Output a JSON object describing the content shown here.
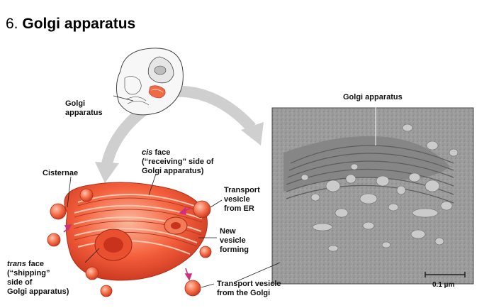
{
  "slide": {
    "number": "6.",
    "title": "Golgi apparatus"
  },
  "labels": {
    "cell_golgi": [
      "Golgi",
      "apparatus"
    ],
    "em_golgi": "Golgi apparatus",
    "cis_face": {
      "italic": "cis",
      "line1_rest": " face",
      "line2": "(“receiving” side of",
      "line3": "Golgi apparatus)"
    },
    "cisternae": "Cisternae",
    "transport_from_er": [
      "Transport",
      "vesicle",
      "from ER"
    ],
    "new_vesicle": [
      "New",
      "vesicle",
      "forming"
    ],
    "trans_face": {
      "italic": "trans",
      "line1_rest": " face",
      "line2": "(“shipping”",
      "line3": "side of",
      "line4": "Golgi apparatus)"
    },
    "transport_from_golgi": [
      "Transport vesicle",
      "from the Golgi"
    ],
    "scale_bar": "0.1 µm"
  },
  "colors": {
    "golgi_fill": "#f4603c",
    "golgi_light": "#f9a184",
    "golgi_dark": "#c7331c",
    "arrow_gray": "#cfcfcf",
    "micrograph_bg": "#9a9a9a",
    "vesicle_arrow": "#d0307a"
  }
}
